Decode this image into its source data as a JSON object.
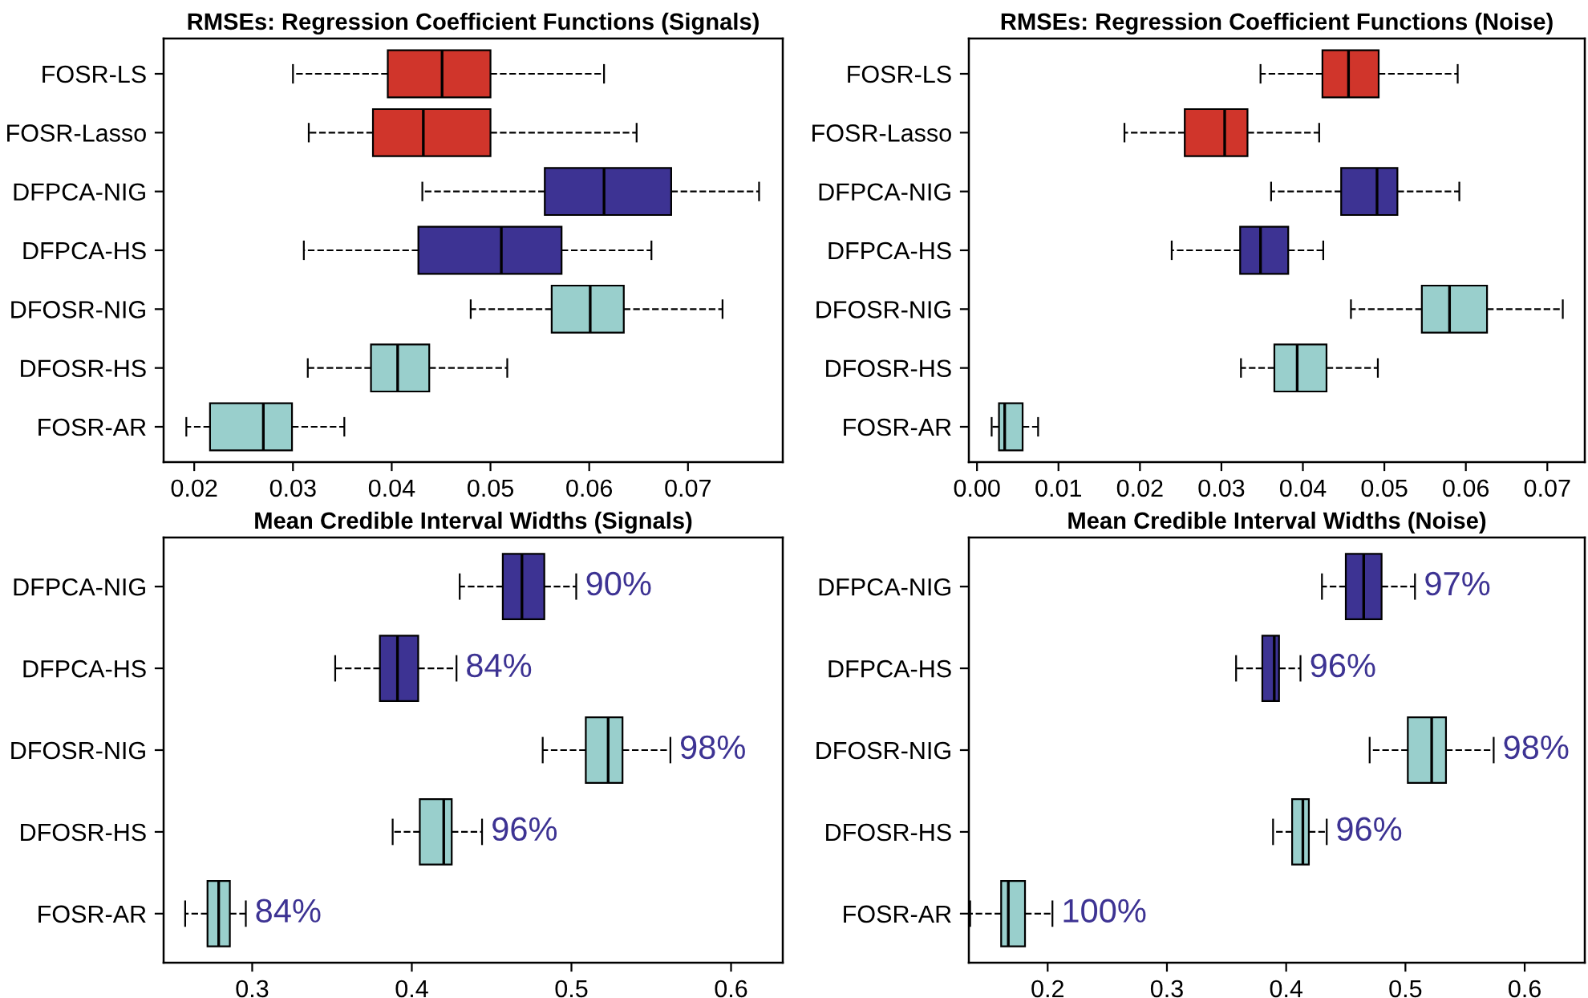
{
  "chart_data": [
    {
      "type": "box",
      "orientation": "horizontal",
      "title": "RMSEs: Regression Coefficient Functions (Signals)",
      "categories": [
        "FOSR-LS",
        "FOSR-Lasso",
        "DFPCA-NIG",
        "DFPCA-HS",
        "DFOSR-NIG",
        "DFOSR-HS",
        "FOSR-AR"
      ],
      "colors": [
        "#d0352b",
        "#d0352b",
        "#3d3393",
        "#3d3393",
        "#99cfcc",
        "#99cfcc",
        "#99cfcc"
      ],
      "boxes": [
        {
          "low": 0.03,
          "q1": 0.0396,
          "median": 0.0451,
          "q3": 0.05,
          "high": 0.0615
        },
        {
          "low": 0.0316,
          "q1": 0.0381,
          "median": 0.0432,
          "q3": 0.05,
          "high": 0.0648
        },
        {
          "low": 0.0431,
          "q1": 0.0555,
          "median": 0.0615,
          "q3": 0.0683,
          "high": 0.0772
        },
        {
          "low": 0.0311,
          "q1": 0.0427,
          "median": 0.0511,
          "q3": 0.0572,
          "high": 0.0663
        },
        {
          "low": 0.048,
          "q1": 0.0562,
          "median": 0.0601,
          "q3": 0.0635,
          "high": 0.0735
        },
        {
          "low": 0.0315,
          "q1": 0.0379,
          "median": 0.0406,
          "q3": 0.0438,
          "high": 0.0517
        },
        {
          "low": 0.0192,
          "q1": 0.0216,
          "median": 0.027,
          "q3": 0.0299,
          "high": 0.0352
        }
      ],
      "xlim": [
        0.0169,
        0.0796
      ],
      "xticks": [
        0.02,
        0.03,
        0.04,
        0.05,
        0.06,
        0.07
      ],
      "line_style": "dashed",
      "grid": false,
      "legend": false
    },
    {
      "type": "box",
      "orientation": "horizontal",
      "title": "RMSEs: Regression Coefficient Functions (Noise)",
      "categories": [
        "FOSR-LS",
        "FOSR-Lasso",
        "DFPCA-NIG",
        "DFPCA-HS",
        "DFOSR-NIG",
        "DFOSR-HS",
        "FOSR-AR"
      ],
      "colors": [
        "#d0352b",
        "#d0352b",
        "#3d3393",
        "#3d3393",
        "#99cfcc",
        "#99cfcc",
        "#99cfcc"
      ],
      "boxes": [
        {
          "low": 0.0348,
          "q1": 0.0424,
          "median": 0.0456,
          "q3": 0.0493,
          "high": 0.059
        },
        {
          "low": 0.0181,
          "q1": 0.0255,
          "median": 0.0304,
          "q3": 0.0332,
          "high": 0.042
        },
        {
          "low": 0.0361,
          "q1": 0.0447,
          "median": 0.0491,
          "q3": 0.0516,
          "high": 0.0592
        },
        {
          "low": 0.0239,
          "q1": 0.0323,
          "median": 0.0348,
          "q3": 0.0382,
          "high": 0.0425
        },
        {
          "low": 0.0459,
          "q1": 0.0546,
          "median": 0.058,
          "q3": 0.0626,
          "high": 0.0719
        },
        {
          "low": 0.0324,
          "q1": 0.0365,
          "median": 0.0393,
          "q3": 0.0429,
          "high": 0.0492
        },
        {
          "low": 0.0018,
          "q1": 0.0027,
          "median": 0.0034,
          "q3": 0.0056,
          "high": 0.0075
        }
      ],
      "xlim": [
        -0.001,
        0.0746
      ],
      "xticks": [
        {
          "value": 0,
          "label": "0.00"
        },
        0.01,
        0.02,
        0.03,
        0.04,
        0.05,
        0.06,
        0.07
      ],
      "line_style": "dashed",
      "grid": false,
      "legend": false
    },
    {
      "type": "box",
      "orientation": "horizontal",
      "title": "Mean Credible Interval Widths (Signals)",
      "categories": [
        "DFPCA-NIG",
        "DFPCA-HS",
        "DFOSR-NIG",
        "DFOSR-HS",
        "FOSR-AR"
      ],
      "colors": [
        "#3d3393",
        "#3d3393",
        "#99cfcc",
        "#99cfcc",
        "#99cfcc"
      ],
      "boxes": [
        {
          "low": 0.43,
          "q1": 0.457,
          "median": 0.469,
          "q3": 0.483,
          "high": 0.503
        },
        {
          "low": 0.352,
          "q1": 0.38,
          "median": 0.391,
          "q3": 0.404,
          "high": 0.428
        },
        {
          "low": 0.482,
          "q1": 0.509,
          "median": 0.523,
          "q3": 0.532,
          "high": 0.562
        },
        {
          "low": 0.388,
          "q1": 0.405,
          "median": 0.42,
          "q3": 0.425,
          "high": 0.444
        },
        {
          "low": 0.258,
          "q1": 0.272,
          "median": 0.279,
          "q3": 0.286,
          "high": 0.296
        }
      ],
      "value_labels": [
        "90%",
        "84%",
        "98%",
        "96%",
        "84%"
      ],
      "xlim": [
        0.2445,
        0.6324
      ],
      "xticks": [
        0.3,
        0.4,
        0.5,
        0.6
      ],
      "line_style": "dashed",
      "grid": false,
      "legend": false
    },
    {
      "type": "box",
      "orientation": "horizontal",
      "title": "Mean Credible Interval Widths (Noise)",
      "categories": [
        "DFPCA-NIG",
        "DFPCA-HS",
        "DFOSR-NIG",
        "DFOSR-HS",
        "FOSR-AR"
      ],
      "colors": [
        "#3d3393",
        "#3d3393",
        "#99cfcc",
        "#99cfcc",
        "#99cfcc"
      ],
      "boxes": [
        {
          "low": 0.43,
          "q1": 0.45,
          "median": 0.465,
          "q3": 0.48,
          "high": 0.508
        },
        {
          "low": 0.358,
          "q1": 0.38,
          "median": 0.39,
          "q3": 0.394,
          "high": 0.412
        },
        {
          "low": 0.47,
          "q1": 0.502,
          "median": 0.522,
          "q3": 0.534,
          "high": 0.574
        },
        {
          "low": 0.389,
          "q1": 0.405,
          "median": 0.414,
          "q3": 0.419,
          "high": 0.434
        },
        {
          "low": 0.135,
          "q1": 0.161,
          "median": 0.167,
          "q3": 0.181,
          "high": 0.204
        }
      ],
      "value_labels": [
        "97%",
        "96%",
        "98%",
        "96%",
        "100%"
      ],
      "xlim": [
        0.1339,
        0.6504
      ],
      "xticks": [
        0.2,
        0.3,
        0.4,
        0.5,
        0.6
      ],
      "line_style": "dashed",
      "grid": false,
      "legend": false
    }
  ]
}
